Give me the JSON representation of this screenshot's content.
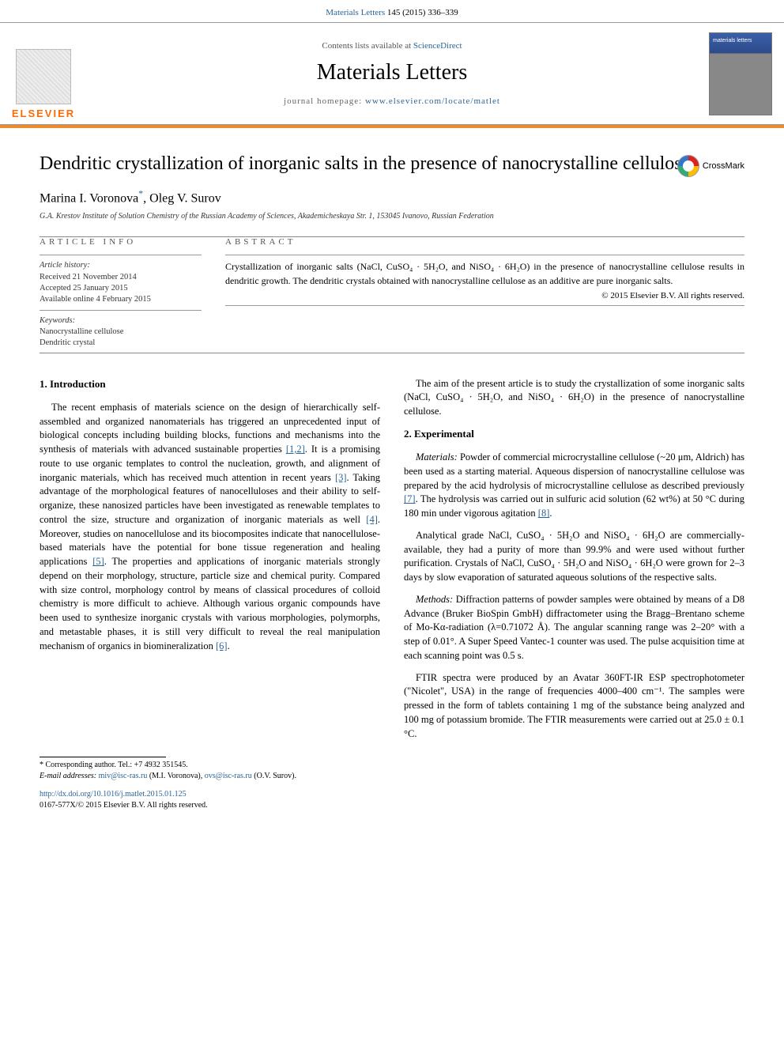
{
  "citation": {
    "prefix": "Materials Letters 145 (2015) 336–339",
    "journal_link": "Materials Letters",
    "vol_pages": " 145 (2015) 336–339"
  },
  "header": {
    "contents_prefix": "Contents lists available at ",
    "contents_link": "ScienceDirect",
    "journal_title": "Materials Letters",
    "homepage_prefix": "journal homepage: ",
    "homepage_url": "www.elsevier.com/locate/matlet",
    "publisher_label": "ELSEVIER"
  },
  "crossmark": {
    "label": "CrossMark"
  },
  "article": {
    "title": "Dendritic crystallization of inorganic salts in the presence of nanocrystalline cellulose",
    "author1": "Marina I. Voronova",
    "author1_sup": "*",
    "author_sep": ", ",
    "author2": "Oleg V. Surov",
    "affiliation": "G.A. Krestov Institute of Solution Chemistry of the Russian Academy of Sciences, Akademicheskaya Str. 1, 153045 Ivanovo, Russian Federation"
  },
  "info": {
    "head": "ARTICLE INFO",
    "history_label": "Article history:",
    "received": "Received 21 November 2014",
    "accepted": "Accepted 25 January 2015",
    "online": "Available online 4 February 2015",
    "keywords_label": "Keywords:",
    "kw1": "Nanocrystalline cellulose",
    "kw2": "Dendritic crystal"
  },
  "abstract": {
    "head": "ABSTRACT",
    "text": "Crystallization of inorganic salts (NaCl, CuSO₄ · 5H₂O, and NiSO₄ · 6H₂O) in the presence of nanocrystalline cellulose results in dendritic growth. The dendritic crystals obtained with nanocrystalline cellulose as an additive are pure inorganic salts.",
    "copyright": "© 2015 Elsevier B.V. All rights reserved."
  },
  "body": {
    "sec1_head": "1.  Introduction",
    "sec1_p1a": "The recent emphasis of materials science on the design of hierarchically self-assembled and organized nanomaterials has triggered an unprecedented input of biological concepts including building blocks, functions and mechanisms into the synthesis of materials with advanced sustainable properties ",
    "sec1_r1": "[1,2]",
    "sec1_p1b": ". It is a promising route to use organic templates to control the nucleation, growth, and alignment of inorganic materials, which has received much attention in recent years ",
    "sec1_r2": "[3]",
    "sec1_p1c": ". Taking advantage of the morphological features of nanocelluloses and their ability to self-organize, these nanosized particles have been investigated as renewable templates to control the size, structure and organization of inorganic materials as well ",
    "sec1_r3": "[4]",
    "sec1_p1d": ". Moreover, studies on nanocellulose and its biocomposites indicate that nanocellulose-based materials have the potential for bone tissue regeneration and healing applications ",
    "sec1_r4": "[5]",
    "sec1_p1e": ". The properties and applications of inorganic materials strongly depend on their morphology, structure, particle size and chemical purity. Compared with size control, morphology control by means of classical procedures of colloid chemistry is more difficult to achieve. Although various organic compounds have been used to synthesize inorganic crystals with various morphologies, polymorphs, and metastable phases, it is still very difficult to reveal the real manipulation mechanism of organics in biomineralization ",
    "sec1_r5": "[6]",
    "sec1_p1f": ".",
    "sec1_p2": "The aim of the present article is to study the crystallization of some inorganic salts (NaCl, CuSO₄ · 5H₂O, and NiSO₄ · 6H₂O) in the presence of nanocrystalline cellulose.",
    "sec2_head": "2.  Experimental",
    "sec2_p1a": "Materials: ",
    "sec2_p1b": "Powder of commercial microcrystalline cellulose (~20 μm, Aldrich) has been used as a starting material. Aqueous dispersion of nanocrystalline cellulose was prepared by the acid hydrolysis of microcrystalline cellulose as described previously ",
    "sec2_r6": "[7]",
    "sec2_p1c": ". The hydrolysis was carried out in sulfuric acid solution (62 wt%) at 50 °C during 180 min under vigorous agitation ",
    "sec2_r7": "[8]",
    "sec2_p1d": ".",
    "sec2_p2": "Analytical grade NaCl, CuSO₄ · 5H₂O and NiSO₄ · 6H₂O are commercially-available, they had a purity of more than 99.9% and were used without further purification. Crystals of NaCl, CuSO₄ · 5H₂O and NiSO₄ · 6H₂O were grown for 2–3 days by slow evaporation of saturated aqueous solutions of the respective salts.",
    "sec2_p3a": "Methods: ",
    "sec2_p3b": "Diffraction patterns of powder samples were obtained by means of a D8 Advance (Bruker BioSpin GmbH) diffractometer using the Bragg–Brentano scheme of Mo-Kα-radiation (λ=0.71072 Å). The angular scanning range was 2–20° with a step of 0.01°. A Super Speed Vantec-1 counter was used. The pulse acquisition time at each scanning point was 0.5 s.",
    "sec2_p4": "FTIR spectra were produced by an Avatar 360FT-IR ESP spectrophotometer (\"Nicolet\", USA) in the range of frequencies 4000–400 cm⁻¹. The samples were pressed in the form of tablets containing 1 mg of the substance being analyzed and 100 mg of potassium bromide. The FTIR measurements were carried out at 25.0 ± 0.1 °C."
  },
  "footer": {
    "corr_label": "* Corresponding author. Tel.: +7 4932 351545.",
    "email_label": "E-mail addresses: ",
    "email1": "miv@isc-ras.ru",
    "email1_who": " (M.I. Voronova), ",
    "email2": "ovs@isc-ras.ru",
    "email2_who": " (O.V. Surov).",
    "doi": "http://dx.doi.org/10.1016/j.matlet.2015.01.125",
    "issn_line": "0167-577X/© 2015 Elsevier B.V. All rights reserved."
  },
  "colors": {
    "link": "#2a6496",
    "orange": "#e98b2e",
    "elsevier": "#ff6a00"
  }
}
